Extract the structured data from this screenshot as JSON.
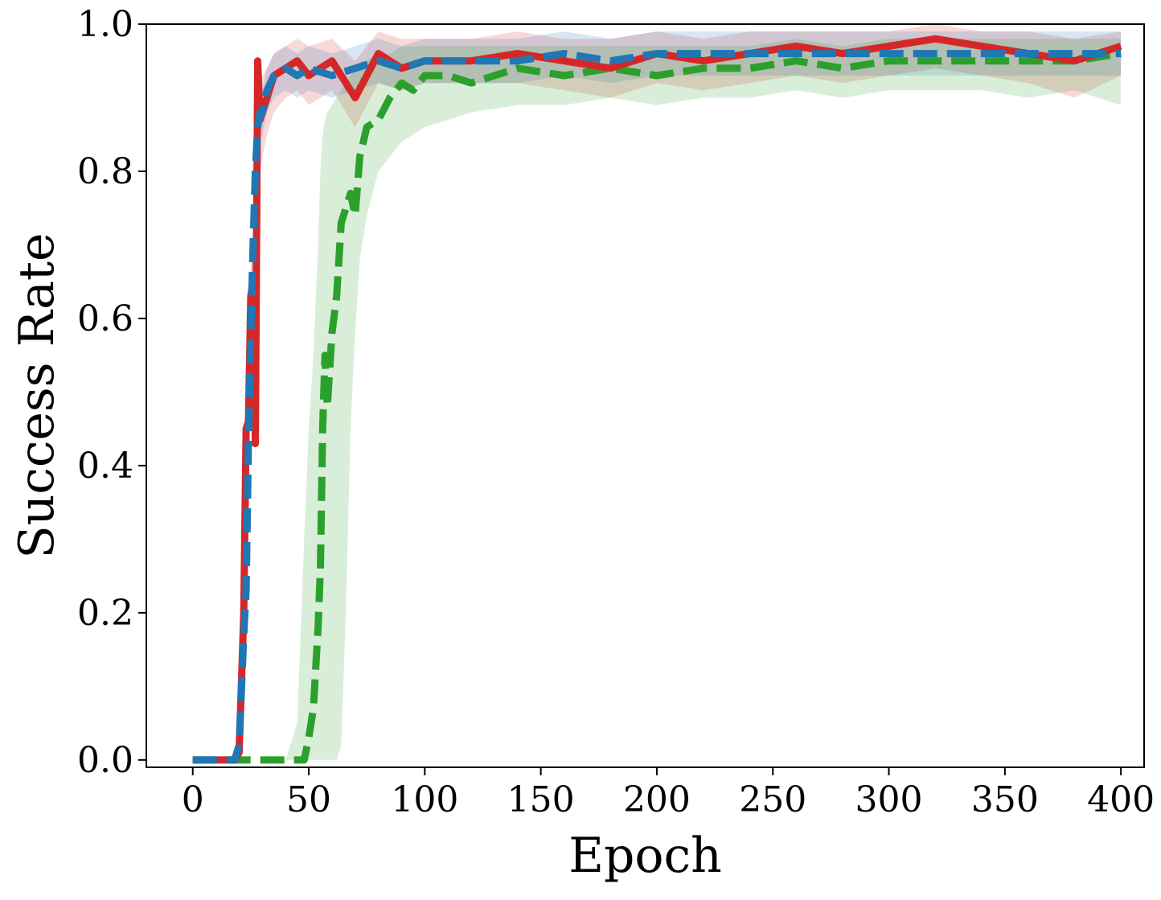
{
  "chart_data": {
    "type": "line",
    "title": "",
    "xlabel": "Epoch",
    "ylabel": "Success Rate",
    "xlim": [
      -20,
      410
    ],
    "ylim": [
      -0.01,
      1.0
    ],
    "xticks": [
      0,
      50,
      100,
      150,
      200,
      250,
      300,
      350,
      400
    ],
    "xtick_labels": [
      "0",
      "50",
      "100",
      "150",
      "200",
      "250",
      "300",
      "350",
      "400"
    ],
    "yticks": [
      0.0,
      0.2,
      0.4,
      0.6,
      0.8,
      1.0
    ],
    "ytick_labels": [
      "0.0",
      "0.2",
      "0.4",
      "0.6",
      "0.8",
      "1.0"
    ],
    "grid": false,
    "legend": "none",
    "series": [
      {
        "color": "#d62728",
        "linestyle": "solid",
        "x": [
          0,
          10,
          18,
          20,
          22,
          23,
          24,
          25,
          26,
          27,
          28,
          29,
          30,
          32,
          35,
          40,
          45,
          50,
          60,
          70,
          80,
          90,
          100,
          120,
          140,
          160,
          180,
          200,
          220,
          240,
          260,
          280,
          300,
          320,
          340,
          360,
          380,
          400
        ],
        "y": [
          0.0,
          0.0,
          0.0,
          0.01,
          0.2,
          0.45,
          0.46,
          0.63,
          0.65,
          0.43,
          0.95,
          0.87,
          0.88,
          0.9,
          0.93,
          0.94,
          0.95,
          0.93,
          0.95,
          0.9,
          0.96,
          0.94,
          0.95,
          0.95,
          0.96,
          0.95,
          0.94,
          0.96,
          0.95,
          0.96,
          0.97,
          0.96,
          0.97,
          0.98,
          0.97,
          0.96,
          0.95,
          0.97
        ],
        "band_low": [
          0.0,
          0.0,
          0.0,
          0.0,
          0.15,
          0.4,
          0.42,
          0.58,
          0.6,
          0.4,
          0.85,
          0.8,
          0.82,
          0.85,
          0.88,
          0.9,
          0.91,
          0.89,
          0.91,
          0.86,
          0.92,
          0.91,
          0.92,
          0.92,
          0.92,
          0.91,
          0.9,
          0.92,
          0.91,
          0.92,
          0.93,
          0.92,
          0.93,
          0.94,
          0.93,
          0.92,
          0.9,
          0.93
        ],
        "band_high": [
          0.0,
          0.0,
          0.0,
          0.02,
          0.25,
          0.5,
          0.5,
          0.68,
          0.7,
          0.5,
          0.97,
          0.92,
          0.93,
          0.94,
          0.96,
          0.97,
          0.98,
          0.97,
          0.98,
          0.95,
          0.99,
          0.98,
          0.98,
          0.98,
          0.99,
          0.98,
          0.98,
          0.99,
          0.98,
          0.99,
          0.99,
          0.99,
          0.99,
          1.0,
          0.99,
          0.99,
          0.98,
          0.99
        ]
      },
      {
        "color": "#1f77b4",
        "linestyle": "dashed",
        "x": [
          0,
          10,
          18,
          20,
          22,
          23,
          24,
          25,
          26,
          27,
          28,
          29,
          30,
          32,
          35,
          40,
          45,
          50,
          60,
          70,
          80,
          90,
          100,
          120,
          140,
          160,
          180,
          200,
          220,
          240,
          260,
          280,
          300,
          320,
          340,
          360,
          380,
          400
        ],
        "y": [
          0.0,
          0.0,
          0.0,
          0.02,
          0.17,
          0.23,
          0.43,
          0.58,
          0.7,
          0.8,
          0.86,
          0.88,
          0.88,
          0.91,
          0.93,
          0.94,
          0.93,
          0.94,
          0.93,
          0.94,
          0.95,
          0.94,
          0.95,
          0.95,
          0.95,
          0.96,
          0.95,
          0.96,
          0.96,
          0.96,
          0.96,
          0.96,
          0.96,
          0.96,
          0.96,
          0.96,
          0.96,
          0.96
        ],
        "band_low": [
          0.0,
          0.0,
          0.0,
          0.0,
          0.12,
          0.18,
          0.38,
          0.53,
          0.65,
          0.75,
          0.82,
          0.85,
          0.85,
          0.88,
          0.9,
          0.91,
          0.9,
          0.91,
          0.9,
          0.91,
          0.92,
          0.91,
          0.92,
          0.92,
          0.92,
          0.93,
          0.92,
          0.93,
          0.93,
          0.93,
          0.93,
          0.93,
          0.93,
          0.93,
          0.93,
          0.93,
          0.93,
          0.93
        ],
        "band_high": [
          0.0,
          0.0,
          0.0,
          0.04,
          0.22,
          0.28,
          0.48,
          0.63,
          0.76,
          0.84,
          0.9,
          0.91,
          0.91,
          0.94,
          0.96,
          0.97,
          0.96,
          0.97,
          0.96,
          0.97,
          0.98,
          0.97,
          0.98,
          0.98,
          0.98,
          0.99,
          0.98,
          0.99,
          0.99,
          0.99,
          0.99,
          0.99,
          0.99,
          0.99,
          0.99,
          0.99,
          0.99,
          0.99
        ]
      },
      {
        "color": "#2ca02c",
        "linestyle": "dashed",
        "x": [
          0,
          20,
          40,
          45,
          48,
          50,
          52,
          54,
          55,
          56,
          57,
          58,
          60,
          62,
          64,
          66,
          68,
          70,
          72,
          75,
          80,
          85,
          90,
          95,
          100,
          110,
          120,
          140,
          160,
          180,
          200,
          220,
          240,
          260,
          280,
          300,
          320,
          340,
          360,
          380,
          400
        ],
        "y": [
          0.0,
          0.0,
          0.0,
          0.0,
          0.0,
          0.03,
          0.07,
          0.18,
          0.26,
          0.45,
          0.55,
          0.48,
          0.58,
          0.63,
          0.73,
          0.75,
          0.77,
          0.74,
          0.82,
          0.86,
          0.87,
          0.9,
          0.92,
          0.91,
          0.93,
          0.93,
          0.92,
          0.94,
          0.93,
          0.94,
          0.93,
          0.94,
          0.94,
          0.95,
          0.94,
          0.95,
          0.95,
          0.95,
          0.95,
          0.95,
          0.96
        ],
        "band_low": [
          0.0,
          0.0,
          0.0,
          0.0,
          0.0,
          0.0,
          0.0,
          0.0,
          0.0,
          0.0,
          0.0,
          0.0,
          0.0,
          0.0,
          0.02,
          0.2,
          0.45,
          0.58,
          0.68,
          0.74,
          0.8,
          0.82,
          0.84,
          0.85,
          0.86,
          0.87,
          0.88,
          0.89,
          0.89,
          0.9,
          0.89,
          0.9,
          0.9,
          0.91,
          0.9,
          0.91,
          0.91,
          0.91,
          0.9,
          0.91,
          0.89
        ],
        "band_high": [
          0.0,
          0.0,
          0.0,
          0.05,
          0.3,
          0.45,
          0.55,
          0.7,
          0.8,
          0.85,
          0.87,
          0.88,
          0.89,
          0.9,
          0.91,
          0.92,
          0.93,
          0.94,
          0.95,
          0.95,
          0.96,
          0.96,
          0.97,
          0.97,
          0.97,
          0.97,
          0.97,
          0.97,
          0.97,
          0.97,
          0.97,
          0.97,
          0.97,
          0.98,
          0.97,
          0.98,
          0.98,
          0.98,
          0.98,
          0.98,
          0.98
        ]
      }
    ]
  }
}
